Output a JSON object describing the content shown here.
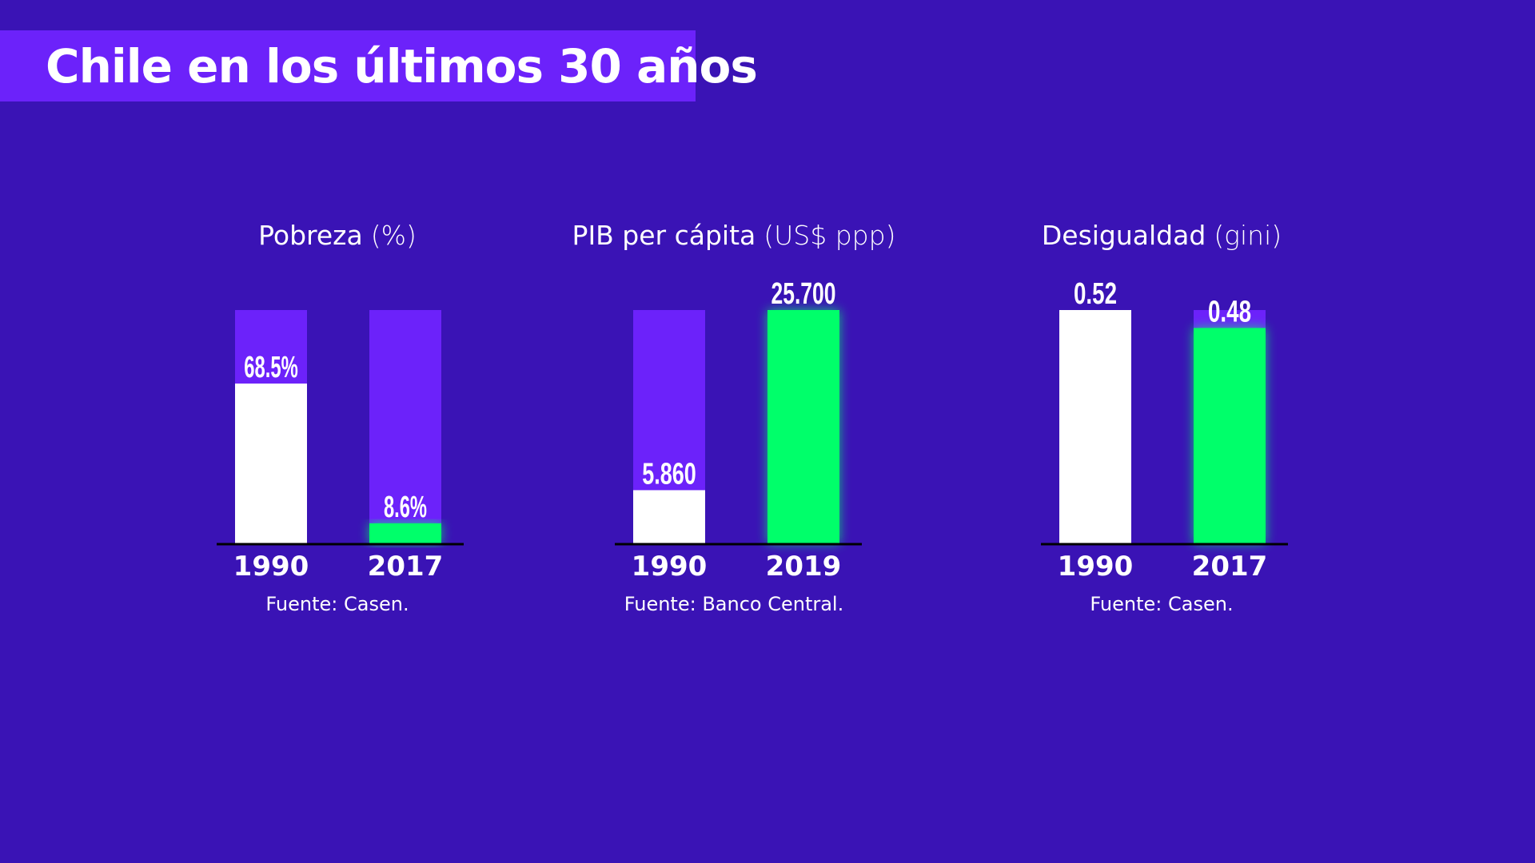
{
  "header": {
    "title": "Chile en los últimos 30 años"
  },
  "colors": {
    "background": "#3a13b5",
    "banner": "#6c22fa",
    "bar_track": "#6c22fa",
    "bar_old": "#ffffff",
    "bar_new": "#00ff6a",
    "baseline": "#000000"
  },
  "chart_data": [
    {
      "type": "bar",
      "title": "Pobreza",
      "unit": "(%)",
      "categories": [
        "1990",
        "2017"
      ],
      "values": [
        68.5,
        8.6
      ],
      "value_labels": [
        "68.5%",
        "8.6%"
      ],
      "ylim": [
        0,
        100
      ],
      "source": "Fuente: Casen."
    },
    {
      "type": "bar",
      "title": "PIB per cápita",
      "unit": "(US$ ppp)",
      "categories": [
        "1990",
        "2019"
      ],
      "values": [
        5860,
        25700
      ],
      "value_labels": [
        "5.860",
        "25.700"
      ],
      "ylim": [
        0,
        25700
      ],
      "source": "Fuente: Banco Central."
    },
    {
      "type": "bar",
      "title": "Desigualdad",
      "unit": "(gini)",
      "categories": [
        "1990",
        "2017"
      ],
      "values": [
        0.52,
        0.48
      ],
      "value_labels": [
        "0.52",
        "0.48"
      ],
      "ylim": [
        0,
        0.52
      ],
      "source": "Fuente: Casen."
    }
  ]
}
